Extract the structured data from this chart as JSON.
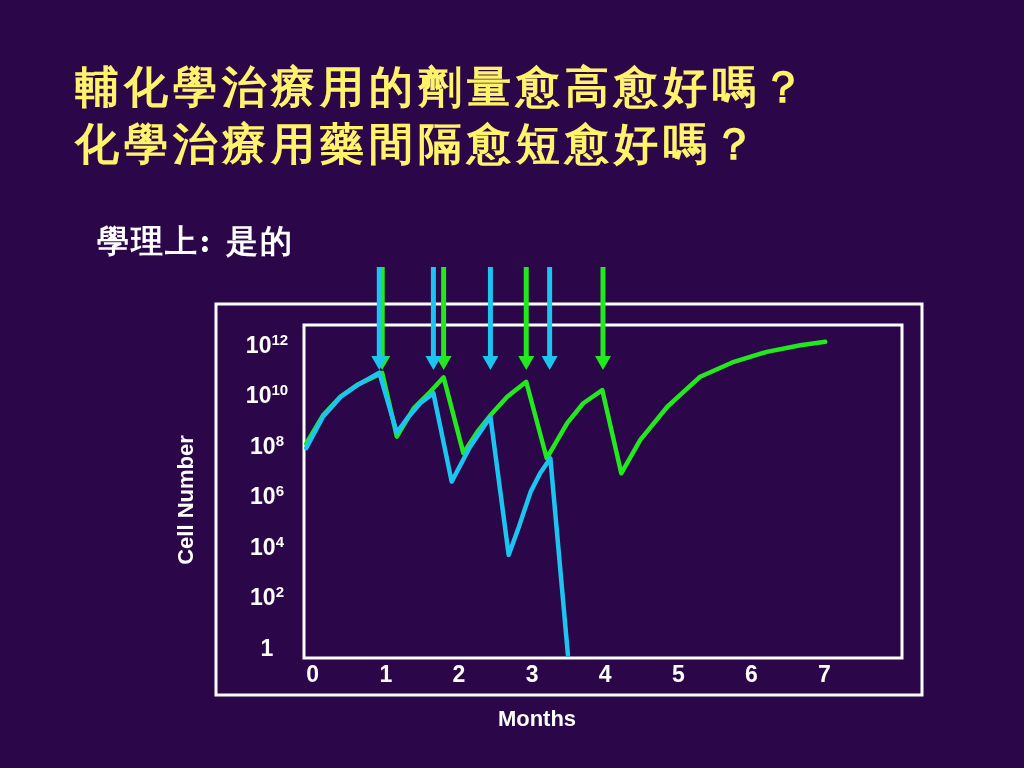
{
  "chart_data": {
    "type": "line",
    "title": "輔化學治療用的劑量愈高愈好嗎？",
    "subtitle": "化學治療用藥間隔愈短愈好嗎？",
    "annotations": [
      "學理上: 是的"
    ],
    "xlabel": "Months",
    "ylabel": "Cell Number",
    "series": [
      {
        "color": "#22e81e",
        "x": [
          -0.09,
          0.14,
          0.38,
          0.61,
          0.95,
          1.15,
          1.38,
          1.61,
          1.79,
          2.06,
          2.25,
          2.43,
          2.66,
          2.92,
          3.2,
          3.48,
          3.7,
          3.96,
          4.22,
          4.48,
          4.85,
          5.3,
          5.76,
          6.21,
          6.67,
          7.01
        ],
        "values": [
          120000000.0,
          1600000000.0,
          8900000000.0,
          26000000000.0,
          76000000000.0,
          230000000.0,
          3000000000.0,
          14000000000.0,
          51000000000.0,
          51000000.0,
          350000000.0,
          1600000000.0,
          8700000000.0,
          34000000000.0,
          32000000.0,
          780000000.0,
          4800000000.0,
          16000000000.0,
          8100000.0,
          170000000.0,
          3500000000.0,
          54000000000.0,
          210000000000.0,
          520000000000.0,
          950000000000.0,
          1300000000000.0
        ]
      },
      {
        "color": "#1cc4f0",
        "x": [
          -0.09,
          0.14,
          0.38,
          0.61,
          0.91,
          1.15,
          1.29,
          1.47,
          1.65,
          1.9,
          2.15,
          2.43,
          2.68,
          2.82,
          2.98,
          3.11,
          3.25,
          3.49
        ],
        "values": [
          81000000.0,
          1400000000.0,
          8500000000.0,
          25000000000.0,
          78000000000.0,
          330000000.0,
          1200000000.0,
          4800000000.0,
          12000000000.0,
          3800000.0,
          89000000.0,
          1400000000.0,
          4800.0,
          63000.0,
          1500000.0,
          8100000.0,
          32000000.0,
          0.54
        ]
      }
    ],
    "xlim": [
      -0.12,
      8.06
    ],
    "xticks": [
      0,
      1,
      2,
      3,
      4,
      5,
      6,
      7
    ],
    "ylim": [
      0.4,
      6000000000000.0
    ],
    "yticks": [
      1,
      {
        "value": 100,
        "label": "10$^{2}$"
      },
      {
        "value": 10000,
        "label": "10$^{4}$"
      },
      {
        "value": 1000000,
        "label": "10$^{6}$"
      },
      {
        "value": 100000000,
        "label": "10$^{8}$"
      },
      {
        "value": 10000000000,
        "label": "10$^{10}$"
      },
      {
        "value": 1000000000000,
        "label": "10$^{12}$"
      }
    ],
    "log": "y",
    "ref_lines": [
      {
        "axis": "x",
        "value": 0.91,
        "color": "#1cc4f0"
      },
      {
        "axis": "x",
        "value": 0.95,
        "color": "#22e81e"
      },
      {
        "axis": "x",
        "value": 1.65,
        "color": "#1cc4f0"
      },
      {
        "axis": "x",
        "value": 1.79,
        "color": "#22e81e"
      },
      {
        "axis": "x",
        "value": 2.43,
        "color": "#1cc4f0"
      },
      {
        "axis": "x",
        "value": 2.92,
        "color": "#22e81e"
      },
      {
        "axis": "x",
        "value": 3.24,
        "color": "#1cc4f0"
      },
      {
        "axis": "x",
        "value": 3.97,
        "color": "#22e81e"
      }
    ]
  }
}
